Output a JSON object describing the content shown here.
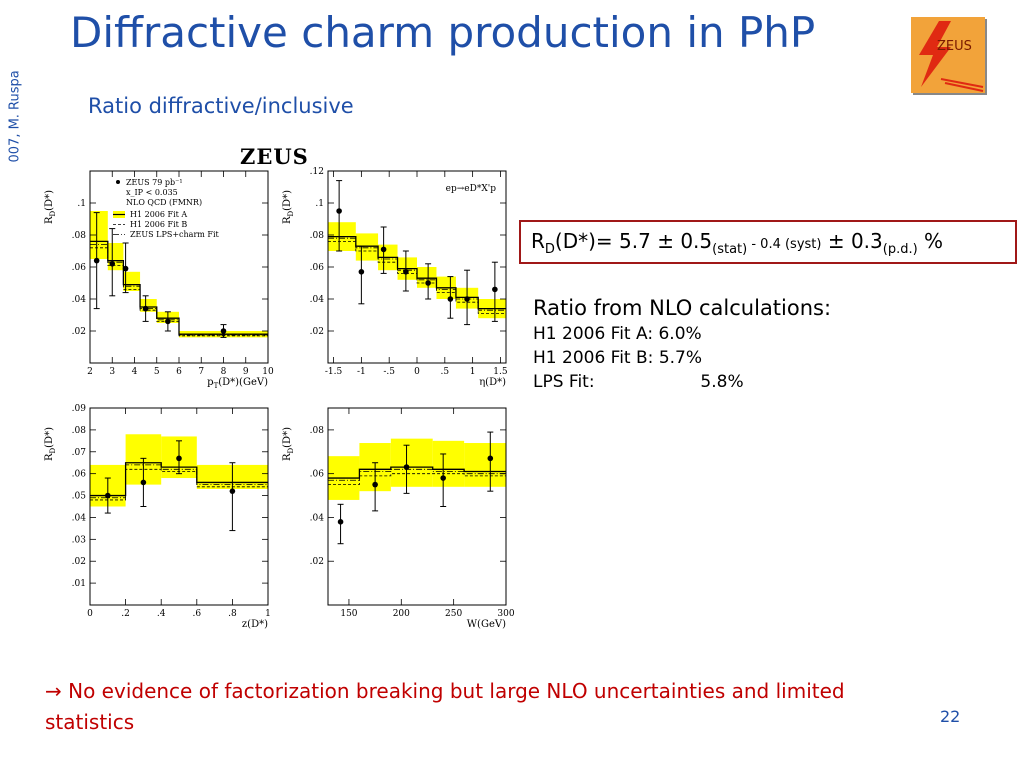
{
  "slide": {
    "side_note": "007, M. Ruspa",
    "title": "Diffractive charm production in PhP",
    "subtitle": "Ratio diffractive/inclusive",
    "logo_text": "ZEUS",
    "figure_header": "ZEUS",
    "page_number": "22"
  },
  "result": {
    "lhs": "R",
    "lhs_sub": "D",
    "lhs_arg": "(D*)= 5.7 ± 0.5",
    "stat_label": "(stat)",
    "syst_label": " - 0.4 (syst)",
    "pm": " ± 0.3",
    "pd_label": "(p.d.)",
    "unit": " %"
  },
  "nlo_ratios": {
    "heading": "Ratio from NLO calculations:",
    "rows": [
      {
        "label": "H1 2006 Fit A:",
        "value": "6.0%"
      },
      {
        "label": "H1 2006 Fit B:",
        "value": "5.7%"
      },
      {
        "label": "LPS Fit:",
        "value": "5.8%"
      }
    ]
  },
  "conclusion": {
    "arrow": "→",
    "text": " No evidence of factorization breaking but large NLO uncertainties and limited statistics"
  },
  "colors": {
    "title_blue": "#1f4fa8",
    "band_yellow": "#ffff00",
    "conclusion_red": "#c00000",
    "box_border": "#a01818"
  },
  "chart_data": [
    {
      "type": "scatter",
      "xlabel": "p_T(D*)(GeV)",
      "ylabel": "R_D(D*)",
      "xlim": [
        2,
        10
      ],
      "ylim": [
        0,
        0.12
      ],
      "xticks": [
        2,
        3,
        4,
        5,
        6,
        7,
        8,
        9,
        10
      ],
      "yticks": [
        0.02,
        0.04,
        0.06,
        0.08,
        0.1
      ],
      "legend": {
        "position": "top-right",
        "entries": [
          "ZEUS 79 pb⁻¹",
          "x_IP < 0.035",
          "NLO QCD (FMNR)",
          "H1 2006 Fit A",
          "H1 2006 Fit B",
          "ZEUS LPS+charm Fit"
        ]
      },
      "bins": [
        [
          2,
          2.8
        ],
        [
          2.8,
          3.5
        ],
        [
          3.5,
          4.25
        ],
        [
          4.25,
          5
        ],
        [
          5,
          6
        ],
        [
          6,
          10
        ]
      ],
      "band_low": [
        0.065,
        0.058,
        0.045,
        0.032,
        0.025,
        0.016
      ],
      "band_high": [
        0.095,
        0.075,
        0.057,
        0.04,
        0.032,
        0.02
      ],
      "fitA": [
        0.076,
        0.064,
        0.049,
        0.035,
        0.028,
        0.018
      ],
      "fitB": [
        0.072,
        0.061,
        0.046,
        0.033,
        0.026,
        0.017
      ],
      "lps": [
        0.074,
        0.063,
        0.048,
        0.034,
        0.027,
        0.0175
      ],
      "points": [
        {
          "x": 2.3,
          "y": 0.064,
          "err_low": 0.03,
          "err_high": 0.03
        },
        {
          "x": 3.0,
          "y": 0.062,
          "err_low": 0.02,
          "err_high": 0.022
        },
        {
          "x": 3.6,
          "y": 0.059,
          "err_low": 0.015,
          "err_high": 0.016
        },
        {
          "x": 4.5,
          "y": 0.034,
          "err_low": 0.008,
          "err_high": 0.008
        },
        {
          "x": 5.5,
          "y": 0.026,
          "err_low": 0.006,
          "err_high": 0.006
        },
        {
          "x": 8.0,
          "y": 0.02,
          "err_low": 0.004,
          "err_high": 0.004
        }
      ]
    },
    {
      "type": "scatter",
      "xlabel": "η(D*)",
      "ylabel": "R_D(D*)",
      "annotation": "ep→eD*X'p",
      "xlim": [
        -1.6,
        1.6
      ],
      "ylim": [
        0,
        0.12
      ],
      "xticks": [
        -1.5,
        -1,
        -0.5,
        0,
        0.5,
        1,
        1.5
      ],
      "yticks": [
        0.02,
        0.04,
        0.06,
        0.08,
        0.1,
        0.12
      ],
      "bins": [
        [
          -1.6,
          -1.1
        ],
        [
          -1.1,
          -0.7
        ],
        [
          -0.7,
          -0.35
        ],
        [
          -0.35,
          0
        ],
        [
          0,
          0.35
        ],
        [
          0.35,
          0.7
        ],
        [
          0.7,
          1.1
        ],
        [
          1.1,
          1.6
        ]
      ],
      "band_low": [
        0.07,
        0.064,
        0.058,
        0.052,
        0.047,
        0.04,
        0.034,
        0.028
      ],
      "band_high": [
        0.088,
        0.081,
        0.074,
        0.066,
        0.06,
        0.054,
        0.047,
        0.04
      ],
      "fitA": [
        0.079,
        0.073,
        0.066,
        0.059,
        0.053,
        0.047,
        0.041,
        0.034
      ],
      "fitB": [
        0.076,
        0.07,
        0.063,
        0.056,
        0.05,
        0.044,
        0.038,
        0.031
      ],
      "lps": [
        0.078,
        0.072,
        0.065,
        0.058,
        0.052,
        0.046,
        0.04,
        0.033
      ],
      "points": [
        {
          "x": -1.4,
          "y": 0.095,
          "err_low": 0.025,
          "err_high": 0.019
        },
        {
          "x": -1.0,
          "y": 0.057,
          "err_low": 0.02,
          "err_high": 0.016
        },
        {
          "x": -0.6,
          "y": 0.071,
          "err_low": 0.015,
          "err_high": 0.014
        },
        {
          "x": -0.2,
          "y": 0.057,
          "err_low": 0.012,
          "err_high": 0.013
        },
        {
          "x": 0.2,
          "y": 0.05,
          "err_low": 0.01,
          "err_high": 0.012
        },
        {
          "x": 0.6,
          "y": 0.04,
          "err_low": 0.012,
          "err_high": 0.014
        },
        {
          "x": 0.9,
          "y": 0.04,
          "err_low": 0.016,
          "err_high": 0.018
        },
        {
          "x": 1.4,
          "y": 0.046,
          "err_low": 0.02,
          "err_high": 0.017
        }
      ]
    },
    {
      "type": "scatter",
      "xlabel": "z(D*)",
      "ylabel": "R_D(D*)",
      "xlim": [
        0,
        1
      ],
      "ylim": [
        0,
        0.09
      ],
      "xticks": [
        0,
        0.2,
        0.4,
        0.6,
        0.8,
        1
      ],
      "yticks": [
        0.01,
        0.02,
        0.03,
        0.04,
        0.05,
        0.06,
        0.07,
        0.08,
        0.09
      ],
      "bins": [
        [
          0,
          0.2
        ],
        [
          0.2,
          0.4
        ],
        [
          0.4,
          0.6
        ],
        [
          0.6,
          1
        ]
      ],
      "band_low": [
        0.045,
        0.055,
        0.058,
        0.053
      ],
      "band_high": [
        0.064,
        0.078,
        0.077,
        0.064
      ],
      "fitA": [
        0.05,
        0.065,
        0.063,
        0.056
      ],
      "fitB": [
        0.048,
        0.062,
        0.061,
        0.054
      ],
      "lps": [
        0.049,
        0.064,
        0.062,
        0.055
      ],
      "points": [
        {
          "x": 0.1,
          "y": 0.05,
          "err_low": 0.008,
          "err_high": 0.008
        },
        {
          "x": 0.3,
          "y": 0.056,
          "err_low": 0.011,
          "err_high": 0.011
        },
        {
          "x": 0.5,
          "y": 0.067,
          "err_low": 0.007,
          "err_high": 0.008
        },
        {
          "x": 0.8,
          "y": 0.052,
          "err_low": 0.018,
          "err_high": 0.013
        }
      ]
    },
    {
      "type": "scatter",
      "xlabel": "W(GeV)",
      "ylabel": "R_D(D*)",
      "xlim": [
        130,
        300
      ],
      "ylim": [
        0,
        0.09
      ],
      "xticks": [
        150,
        200,
        250,
        300
      ],
      "yticks": [
        0.02,
        0.04,
        0.06,
        0.08
      ],
      "bins": [
        [
          130,
          160
        ],
        [
          160,
          190
        ],
        [
          190,
          230
        ],
        [
          230,
          260
        ],
        [
          260,
          300
        ]
      ],
      "band_low": [
        0.048,
        0.052,
        0.054,
        0.054,
        0.054
      ],
      "band_high": [
        0.068,
        0.074,
        0.076,
        0.075,
        0.074
      ],
      "fitA": [
        0.058,
        0.062,
        0.063,
        0.062,
        0.061
      ],
      "fitB": [
        0.055,
        0.059,
        0.06,
        0.06,
        0.059
      ],
      "lps": [
        0.057,
        0.061,
        0.062,
        0.061,
        0.06
      ],
      "points": [
        {
          "x": 142,
          "y": 0.038,
          "err_low": 0.01,
          "err_high": 0.008
        },
        {
          "x": 175,
          "y": 0.055,
          "err_low": 0.012,
          "err_high": 0.01
        },
        {
          "x": 205,
          "y": 0.063,
          "err_low": 0.012,
          "err_high": 0.01
        },
        {
          "x": 240,
          "y": 0.058,
          "err_low": 0.013,
          "err_high": 0.011
        },
        {
          "x": 285,
          "y": 0.067,
          "err_low": 0.015,
          "err_high": 0.012
        }
      ]
    }
  ]
}
